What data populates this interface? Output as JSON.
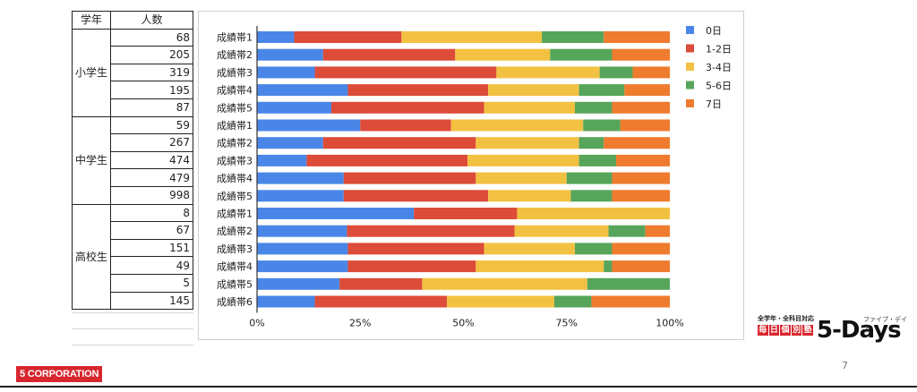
{
  "table": {
    "headers": [
      "学年",
      "人数"
    ],
    "groups": [
      {
        "grade": "小学生",
        "counts": [
          "68",
          "205",
          "319",
          "195",
          "87"
        ]
      },
      {
        "grade": "中学生",
        "counts": [
          "59",
          "267",
          "474",
          "479",
          "998"
        ]
      },
      {
        "grade": "高校生",
        "counts": [
          "8",
          "67",
          "151",
          "49",
          "5",
          "145"
        ]
      }
    ]
  },
  "chart_data": {
    "type": "bar",
    "orientation": "horizontal",
    "stacked": "percent",
    "categories": [
      "成績帯1",
      "成績帯2",
      "成績帯3",
      "成績帯4",
      "成績帯5",
      "成績帯1",
      "成績帯2",
      "成績帯3",
      "成績帯4",
      "成績帯5",
      "成績帯1",
      "成績帯2",
      "成績帯3",
      "成績帯4",
      "成績帯5",
      "成績帯6"
    ],
    "series": [
      {
        "name": "0日",
        "color": "#4a86e8",
        "values": [
          9,
          16,
          14,
          22,
          18,
          25,
          16,
          12,
          21,
          21,
          38,
          22,
          22,
          22,
          20,
          14
        ]
      },
      {
        "name": "1-2日",
        "color": "#dd4b39",
        "values": [
          26,
          32,
          44,
          34,
          37,
          22,
          37,
          39,
          32,
          35,
          25,
          41,
          33,
          31,
          20,
          32
        ]
      },
      {
        "name": "3-4日",
        "color": "#f3c142",
        "values": [
          34,
          23,
          25,
          22,
          22,
          32,
          25,
          27,
          22,
          20,
          37,
          23,
          22,
          31,
          40,
          26
        ]
      },
      {
        "name": "5-6日",
        "color": "#57a55a",
        "values": [
          15,
          15,
          8,
          11,
          9,
          9,
          6,
          9,
          11,
          10,
          0,
          9,
          9,
          2,
          20,
          9
        ]
      },
      {
        "name": "7日",
        "color": "#ef7b2e",
        "values": [
          16,
          14,
          9,
          11,
          14,
          12,
          16,
          13,
          14,
          14,
          0,
          6,
          14,
          14,
          0,
          19
        ]
      }
    ],
    "xaxis": {
      "ticks": [
        "0%",
        "25%",
        "50%",
        "75%",
        "100%"
      ],
      "range": [
        0,
        100
      ]
    },
    "legend": "right"
  },
  "footer": {
    "page_number": "7",
    "corporation": "5 CORPORATION",
    "brand_top": "全学年・全科目対応",
    "brand_chars": [
      "毎",
      "日",
      "個",
      "別",
      "塾"
    ],
    "brand_name": "5-Days",
    "brand_kana": "ファイブ・デイズ"
  }
}
